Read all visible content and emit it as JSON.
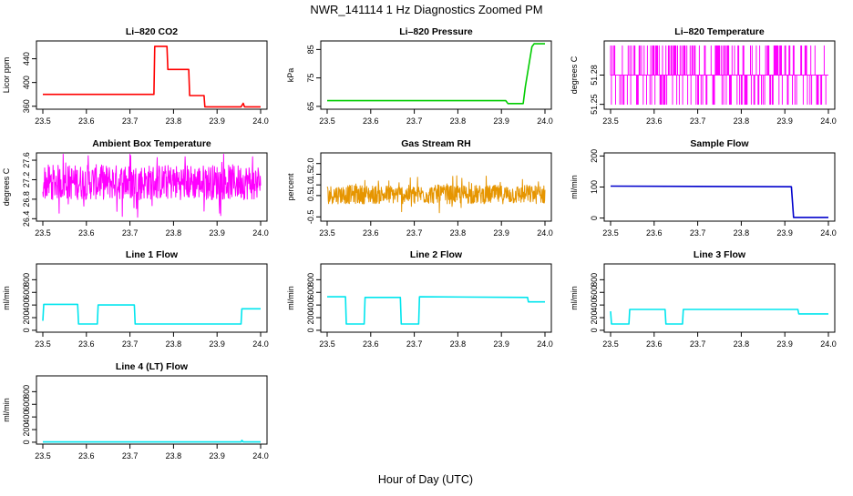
{
  "figure": {
    "title": "NWR_141114  1 Hz Diagnostics Zoomed PM",
    "xlabel": "Hour of Day (UTC)",
    "xticks": [
      23.5,
      23.6,
      23.7,
      23.8,
      23.9,
      24.0
    ],
    "xtick_labels": [
      "23.5",
      "23.6",
      "23.7",
      "23.8",
      "23.9",
      "24.0"
    ]
  },
  "chart_data": [
    {
      "type": "line",
      "title": "Li–820 CO2",
      "ylabel": "Licor ppm",
      "color": "#ff0000",
      "xlim": [
        23.5,
        24.0
      ],
      "ylim": [
        355,
        470
      ],
      "yticks": [
        360,
        400,
        440
      ],
      "ytick_labels": [
        "360",
        "400",
        "440"
      ],
      "series": [
        {
          "x": [
            23.5,
            23.755,
            23.757,
            23.785,
            23.787,
            23.835,
            23.837,
            23.87,
            23.872,
            23.955,
            23.96,
            23.963,
            24.0
          ],
          "values": [
            380,
            380,
            461,
            461,
            422,
            422,
            378,
            378,
            359,
            359,
            365,
            359,
            359
          ]
        }
      ]
    },
    {
      "type": "line",
      "title": "Li–820 Pressure",
      "ylabel": "kPa",
      "color": "#00cc00",
      "xlim": [
        23.5,
        24.0
      ],
      "ylim": [
        64,
        88
      ],
      "yticks": [
        65,
        75,
        85
      ],
      "ytick_labels": [
        "65",
        "75",
        "85"
      ],
      "series": [
        {
          "x": [
            23.5,
            23.91,
            23.915,
            23.95,
            23.955,
            23.97,
            23.975,
            24.0
          ],
          "values": [
            67,
            67,
            66,
            66,
            72,
            86,
            87,
            87
          ]
        }
      ]
    },
    {
      "type": "line",
      "title": "Li–820 Temperature",
      "ylabel": "degrees C",
      "color": "#ff00ff",
      "xlim": [
        23.5,
        24.0
      ],
      "ylim": [
        51.245,
        51.315
      ],
      "yticks": [
        51.25,
        51.28
      ],
      "ytick_labels": [
        "51.25",
        "51.28"
      ],
      "series": [
        {
          "x": [
            23.5,
            24.0
          ],
          "values": [
            51.25,
            51.31
          ],
          "mode": "toggle",
          "levels": [
            51.25,
            51.28,
            51.31
          ]
        }
      ]
    },
    {
      "type": "line",
      "title": "Ambient Box Temperature",
      "ylabel": "degrees C",
      "color": "#ff00ff",
      "xlim": [
        23.5,
        24.0
      ],
      "ylim": [
        26.35,
        27.75
      ],
      "yticks": [
        26.4,
        26.8,
        27.2,
        27.6
      ],
      "ytick_labels": [
        "26.4",
        "26.8",
        "27.2",
        "27.6"
      ],
      "series": [
        {
          "x": [
            23.5,
            24.0
          ],
          "values": [
            27.05,
            27.25
          ],
          "mode": "noise",
          "center": 27.15,
          "spread": 0.45
        }
      ]
    },
    {
      "type": "line",
      "title": "Gas Stream RH",
      "ylabel": "percent",
      "color": "#e69500",
      "xlim": [
        23.5,
        24.0
      ],
      "ylim": [
        -0.7,
        2.5
      ],
      "yticks": [
        -0.5,
        0.5,
        1.0,
        1.5,
        2.0
      ],
      "ytick_labels": [
        "-0.5",
        "0.5",
        "1.0",
        "1.5",
        "2.0"
      ],
      "series": [
        {
          "x": [
            23.5,
            24.0
          ],
          "values": [
            0.3,
            0.9
          ],
          "mode": "noise",
          "center": 0.55,
          "spread": 0.55
        }
      ]
    },
    {
      "type": "line",
      "title": "Sample Flow",
      "ylabel": "ml/min",
      "color": "#0000cc",
      "xlim": [
        23.5,
        24.0
      ],
      "ylim": [
        -10,
        210
      ],
      "yticks": [
        0,
        100,
        200
      ],
      "ytick_labels": [
        "0",
        "100",
        "200"
      ],
      "series": [
        {
          "x": [
            23.5,
            23.915,
            23.92,
            24.0
          ],
          "values": [
            103,
            101,
            2,
            2
          ]
        }
      ]
    },
    {
      "type": "line",
      "title": "Line 1 Flow",
      "ylabel": "ml/min",
      "color": "#00e5ee",
      "xlim": [
        23.5,
        24.0
      ],
      "ylim": [
        -30,
        1050
      ],
      "yticks": [
        0,
        200,
        400,
        600,
        800
      ],
      "ytick_labels": [
        "0",
        "200",
        "400",
        "600",
        "800"
      ],
      "series": [
        {
          "x": [
            23.5,
            23.502,
            23.58,
            23.582,
            23.625,
            23.627,
            23.71,
            23.712,
            23.955,
            23.957,
            24.0
          ],
          "values": [
            150,
            410,
            410,
            100,
            100,
            400,
            400,
            100,
            100,
            340,
            340
          ]
        }
      ]
    },
    {
      "type": "line",
      "title": "Line 2 Flow",
      "ylabel": "ml/min",
      "color": "#00e5ee",
      "xlim": [
        23.5,
        24.0
      ],
      "ylim": [
        -30,
        1050
      ],
      "yticks": [
        0,
        200,
        400,
        600,
        800
      ],
      "ytick_labels": [
        "0",
        "200",
        "400",
        "600",
        "800"
      ],
      "series": [
        {
          "x": [
            23.5,
            23.542,
            23.544,
            23.585,
            23.587,
            23.668,
            23.67,
            23.71,
            23.712,
            23.96,
            23.962,
            24.0
          ],
          "values": [
            530,
            530,
            100,
            100,
            520,
            520,
            100,
            100,
            530,
            520,
            450,
            450
          ]
        }
      ]
    },
    {
      "type": "line",
      "title": "Line 3 Flow",
      "ylabel": "ml/min",
      "color": "#00e5ee",
      "xlim": [
        23.5,
        24.0
      ],
      "ylim": [
        -30,
        1050
      ],
      "yticks": [
        0,
        200,
        400,
        600,
        800
      ],
      "ytick_labels": [
        "0",
        "200",
        "400",
        "600",
        "800"
      ],
      "series": [
        {
          "x": [
            23.5,
            23.502,
            23.542,
            23.544,
            23.625,
            23.627,
            23.665,
            23.667,
            23.93,
            23.932,
            24.0
          ],
          "values": [
            300,
            100,
            100,
            330,
            330,
            100,
            100,
            330,
            330,
            260,
            260
          ]
        }
      ]
    },
    {
      "type": "line",
      "title": "Line 4 (LT) Flow",
      "ylabel": "ml/min",
      "color": "#00e5ee",
      "xlim": [
        23.5,
        24.0
      ],
      "ylim": [
        -30,
        1050
      ],
      "yticks": [
        0,
        200,
        400,
        600,
        800
      ],
      "ytick_labels": [
        "0",
        "200",
        "400",
        "600",
        "800"
      ],
      "series": [
        {
          "x": [
            23.5,
            23.955,
            23.957,
            23.96,
            24.0
          ],
          "values": [
            5,
            5,
            30,
            5,
            5
          ]
        }
      ]
    }
  ]
}
